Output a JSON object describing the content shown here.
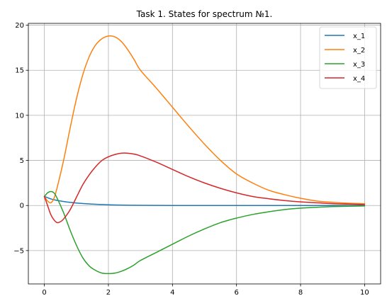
{
  "chart_data": {
    "type": "line",
    "title": "Task 1. States for spectrum №1.",
    "xlabel": "",
    "ylabel": "",
    "xlim": [
      -0.5,
      10.5
    ],
    "ylim": [
      -8.7,
      20.2
    ],
    "x_ticks": [
      0,
      2,
      4,
      6,
      8,
      10
    ],
    "x_tick_labels": [
      "0",
      "2",
      "4",
      "6",
      "8",
      "10"
    ],
    "y_ticks": [
      -5,
      0,
      5,
      10,
      15,
      20
    ],
    "y_tick_labels": [
      "−5",
      "0",
      "5",
      "10",
      "15",
      "20"
    ],
    "grid": true,
    "legend_position": "top-right",
    "series": [
      {
        "name": "x_1",
        "color": "#1f77b4",
        "x": [
          0,
          0.25,
          0.5,
          0.75,
          1,
          1.5,
          2,
          2.5,
          3,
          4,
          5,
          6,
          7,
          8,
          9,
          10
        ],
        "y": [
          1.0,
          0.68,
          0.5,
          0.37,
          0.27,
          0.15,
          0.08,
          0.04,
          0.02,
          0.0,
          0.0,
          0.0,
          0.0,
          0.0,
          0.0,
          0.0
        ]
      },
      {
        "name": "x_2",
        "color": "#ff7f0e",
        "x": [
          0,
          0.1,
          0.2,
          0.3,
          0.4,
          0.6,
          0.8,
          1.0,
          1.2,
          1.4,
          1.6,
          1.8,
          2.0,
          2.2,
          2.4,
          2.6,
          2.8,
          3.0,
          3.5,
          4.0,
          4.5,
          5.0,
          5.5,
          6.0,
          6.5,
          7.0,
          7.5,
          8.0,
          8.5,
          9.0,
          9.5,
          10.0
        ],
        "y": [
          1.0,
          0.5,
          0.3,
          0.8,
          2.0,
          5.0,
          8.5,
          11.8,
          14.5,
          16.5,
          17.8,
          18.5,
          18.8,
          18.7,
          18.2,
          17.3,
          16.2,
          15.0,
          13.0,
          10.9,
          8.8,
          6.8,
          5.0,
          3.5,
          2.5,
          1.7,
          1.2,
          0.8,
          0.5,
          0.35,
          0.25,
          0.2
        ]
      },
      {
        "name": "x_3",
        "color": "#2ca02c",
        "x": [
          0,
          0.1,
          0.2,
          0.3,
          0.4,
          0.6,
          0.8,
          1.0,
          1.2,
          1.4,
          1.6,
          1.8,
          2.0,
          2.2,
          2.4,
          2.6,
          2.8,
          3.0,
          3.5,
          4.0,
          4.5,
          5.0,
          5.5,
          6.0,
          6.5,
          7.0,
          7.5,
          8.0,
          8.5,
          9.0,
          9.5,
          10.0
        ],
        "y": [
          1.0,
          1.4,
          1.55,
          1.4,
          0.8,
          -0.8,
          -2.7,
          -4.4,
          -5.8,
          -6.7,
          -7.2,
          -7.5,
          -7.55,
          -7.5,
          -7.3,
          -7.0,
          -6.6,
          -6.1,
          -5.2,
          -4.3,
          -3.4,
          -2.6,
          -1.9,
          -1.4,
          -1.0,
          -0.7,
          -0.45,
          -0.3,
          -0.2,
          -0.12,
          -0.08,
          -0.05
        ]
      },
      {
        "name": "x_4",
        "color": "#d62728",
        "x": [
          0,
          0.1,
          0.2,
          0.3,
          0.4,
          0.5,
          0.6,
          0.8,
          1.0,
          1.2,
          1.4,
          1.6,
          1.8,
          2.0,
          2.2,
          2.4,
          2.6,
          2.8,
          3.0,
          3.5,
          4.0,
          4.5,
          5.0,
          5.5,
          6.0,
          6.5,
          7.0,
          7.5,
          8.0,
          8.5,
          9.0,
          9.5,
          10.0
        ],
        "y": [
          1.0,
          0.0,
          -1.0,
          -1.6,
          -1.9,
          -1.8,
          -1.5,
          -0.5,
          0.9,
          2.3,
          3.4,
          4.3,
          5.0,
          5.4,
          5.65,
          5.8,
          5.8,
          5.7,
          5.5,
          4.8,
          4.0,
          3.2,
          2.5,
          1.9,
          1.4,
          1.0,
          0.75,
          0.55,
          0.4,
          0.3,
          0.2,
          0.15,
          0.1
        ]
      }
    ]
  }
}
